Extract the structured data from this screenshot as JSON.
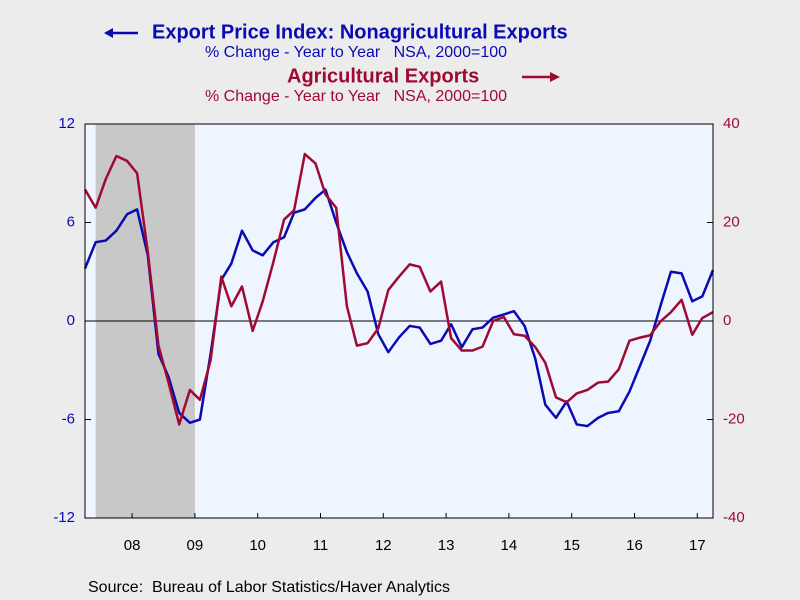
{
  "chart_data": {
    "type": "line",
    "source": "Source:  Bureau of Labor Statistics/Haver Analytics",
    "x": [
      2007.75,
      2007.92,
      2008.08,
      2008.25,
      2008.42,
      2008.58,
      2008.75,
      2008.92,
      2009.08,
      2009.25,
      2009.42,
      2009.58,
      2009.75,
      2009.92,
      2010.08,
      2010.25,
      2010.42,
      2010.58,
      2010.75,
      2010.92,
      2011.08,
      2011.25,
      2011.42,
      2011.58,
      2011.75,
      2011.92,
      2012.08,
      2012.25,
      2012.42,
      2012.58,
      2012.75,
      2012.92,
      2013.08,
      2013.25,
      2013.42,
      2013.58,
      2013.75,
      2013.92,
      2014.08,
      2014.25,
      2014.42,
      2014.58,
      2014.75,
      2014.92,
      2015.08,
      2015.25,
      2015.42,
      2015.58,
      2015.75,
      2015.92,
      2016.08,
      2016.25,
      2016.42,
      2016.58,
      2016.75,
      2016.92,
      2017.08,
      2017.25,
      2017.42,
      2017.58,
      2017.75
    ],
    "series": [
      {
        "name": "Export Price Index: Nonagricultural Exports",
        "subtitle": "% Change - Year to Year   NSA, 2000=100",
        "color": "#0a0ab4",
        "axis": "y",
        "values": [
          3.2,
          4.8,
          4.9,
          5.5,
          6.5,
          6.8,
          4.0,
          -2.0,
          -3.4,
          -5.6,
          -6.2,
          -6.0,
          -2.0,
          2.5,
          3.5,
          5.5,
          4.3,
          4.0,
          4.8,
          5.1,
          6.6,
          6.8,
          7.5,
          8.0,
          6.0,
          4.2,
          2.9,
          1.8,
          -0.8,
          -1.9,
          -1.0,
          -0.3,
          -0.4,
          -1.4,
          -1.2,
          -0.2,
          -1.6,
          -0.5,
          -0.4,
          0.2,
          0.4,
          0.6,
          -0.3,
          -2.3,
          -5.1,
          -5.9,
          -4.9,
          -6.3,
          -6.4,
          -5.9,
          -5.6,
          -5.5,
          -4.3,
          -2.8,
          -1.2,
          1.0,
          3.0,
          2.9,
          1.2,
          1.5,
          3.1
        ]
      },
      {
        "name": "Agricultural Exports",
        "subtitle": "% Change - Year to Year   NSA, 2000=100",
        "color": "#a00a32",
        "axis": "y2",
        "values": [
          26.7,
          23,
          28.8,
          33.5,
          32.5,
          30,
          14,
          -5,
          -12.5,
          -21,
          -14,
          -16,
          -8,
          9,
          3,
          7,
          -2,
          4,
          12,
          20.6,
          22.5,
          33.9,
          32,
          25.7,
          23,
          3,
          -5,
          -4.5,
          -1.5,
          6.3,
          9,
          11.5,
          11,
          6,
          8,
          -3.5,
          -6,
          -6,
          -5.2,
          0,
          0.8,
          -2.7,
          -3,
          -5.3,
          -8.5,
          -15.5,
          -16.5,
          -14.7,
          -14,
          -12.5,
          -12.3,
          -9.8,
          -4,
          -3.4,
          -2.9,
          0,
          1.8,
          4.3,
          -2.8,
          0.6,
          1.8
        ]
      }
    ],
    "xlim": [
      2007.75,
      2017.75
    ],
    "xticks": [
      {
        "value": 2008.5,
        "label": "08"
      },
      {
        "value": 2009.5,
        "label": "09"
      },
      {
        "value": 2010.5,
        "label": "10"
      },
      {
        "value": 2011.5,
        "label": "11"
      },
      {
        "value": 2012.5,
        "label": "12"
      },
      {
        "value": 2013.5,
        "label": "13"
      },
      {
        "value": 2014.5,
        "label": "14"
      },
      {
        "value": 2015.5,
        "label": "15"
      },
      {
        "value": 2016.5,
        "label": "16"
      },
      {
        "value": 2017.5,
        "label": "17"
      }
    ],
    "ylim": [
      -12,
      12
    ],
    "yticks": [
      12,
      6,
      0,
      -6,
      -12
    ],
    "y2lim": [
      -40,
      40
    ],
    "y2ticks": [
      40,
      20,
      0,
      -20,
      -40
    ],
    "shade": [
      2007.92,
      2009.5
    ]
  }
}
